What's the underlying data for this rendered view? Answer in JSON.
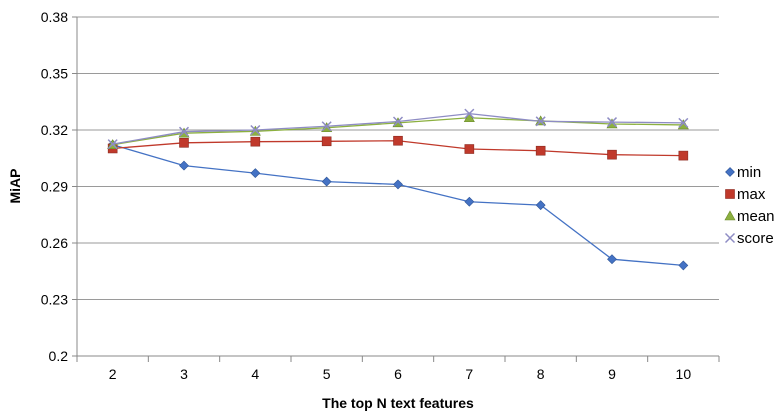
{
  "chart_data": {
    "type": "line",
    "title": "",
    "xlabel": "The top N text features",
    "ylabel": "MiAP",
    "x": [
      2,
      3,
      4,
      5,
      6,
      7,
      8,
      9,
      10
    ],
    "ylim": [
      0.2,
      0.38
    ],
    "yticks": [
      "0.2",
      "0.23",
      "0.26",
      "0.29",
      "0.32",
      "0.35",
      "0.38"
    ],
    "xticks": [
      "2",
      "3",
      "4",
      "5",
      "6",
      "7",
      "8",
      "9",
      "10"
    ],
    "grid": true,
    "legend_position": "right",
    "series": [
      {
        "name": "min",
        "marker": "diamond",
        "color": "#4472C4",
        "values": [
          0.3122,
          0.3011,
          0.2971,
          0.2926,
          0.2911,
          0.2819,
          0.2801,
          0.2514,
          0.2481
        ]
      },
      {
        "name": "max",
        "marker": "square",
        "color": "#C0392B",
        "values": [
          0.3102,
          0.3132,
          0.3138,
          0.314,
          0.3143,
          0.3099,
          0.309,
          0.3069,
          0.3064
        ]
      },
      {
        "name": "mean",
        "marker": "triangle",
        "color": "#8CB040",
        "values": [
          0.3122,
          0.3183,
          0.3193,
          0.3212,
          0.3238,
          0.3265,
          0.3248,
          0.3232,
          0.3227
        ]
      },
      {
        "name": "score",
        "marker": "x",
        "color": "#8E8CC4",
        "values": [
          0.3125,
          0.3191,
          0.32,
          0.322,
          0.3245,
          0.3287,
          0.3246,
          0.3242,
          0.3238
        ]
      }
    ]
  }
}
